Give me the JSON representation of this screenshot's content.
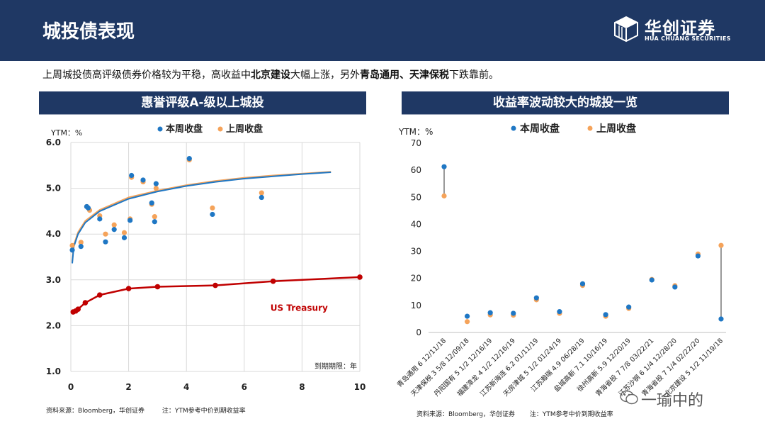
{
  "header": {
    "title": "城投债表现",
    "logo_main": "华创证券",
    "logo_sub": "HUA CHUANG SECURITIES"
  },
  "summary": {
    "p1": "上周城投债高评级债券价格较为平稳，高收益中",
    "b1": "北京建设",
    "p2": "大幅上涨，另外",
    "b2": "青岛通用、天津保税",
    "p3": "下跌靠前。"
  },
  "colors": {
    "blue": "#1f77c4",
    "orange": "#f5a35a",
    "red": "#c00000",
    "navy": "#1f3864"
  },
  "left_panel": {
    "title": "惠誉评级A-级以上城投",
    "source": "资料来源：Bloomberg，华创证券",
    "note": "注：YTM参考中价到期收益率"
  },
  "right_panel": {
    "title": "收益率波动较大的城投一览",
    "source": "资料来源：Bloomberg，华创证券",
    "note": "注：YTM参考中价到期收益率"
  },
  "watermark": "一瑜中的",
  "chart_data": [
    {
      "type": "scatter",
      "ylabel": "YTM：%",
      "xlabel": "到期期限：年",
      "xlim": [
        0,
        10
      ],
      "ylim": [
        1.0,
        6.0
      ],
      "xticks": [
        0,
        2,
        4,
        6,
        8,
        10
      ],
      "yticks": [
        "1.0",
        "2.0",
        "3.0",
        "4.0",
        "5.0",
        "6.0"
      ],
      "grid": true,
      "legend": [
        "本周收盘",
        "上周收盘"
      ],
      "series": [
        {
          "name": "本周收盘",
          "points": [
            [
              0.05,
              3.65
            ],
            [
              0.35,
              3.73
            ],
            [
              0.55,
              4.6
            ],
            [
              0.6,
              4.57
            ],
            [
              1.0,
              4.33
            ],
            [
              1.2,
              3.83
            ],
            [
              1.5,
              4.1
            ],
            [
              1.85,
              3.92
            ],
            [
              2.05,
              4.3
            ],
            [
              2.1,
              5.28
            ],
            [
              2.5,
              5.18
            ],
            [
              2.8,
              4.68
            ],
            [
              2.9,
              4.27
            ],
            [
              2.95,
              5.1
            ],
            [
              4.1,
              5.65
            ],
            [
              4.9,
              4.43
            ],
            [
              6.6,
              4.8
            ]
          ]
        },
        {
          "name": "上周收盘",
          "points": [
            [
              0.05,
              3.75
            ],
            [
              0.35,
              3.82
            ],
            [
              0.55,
              4.6
            ],
            [
              0.65,
              4.52
            ],
            [
              1.0,
              4.4
            ],
            [
              1.2,
              4.0
            ],
            [
              1.5,
              4.2
            ],
            [
              1.85,
              4.03
            ],
            [
              2.05,
              4.33
            ],
            [
              2.1,
              5.24
            ],
            [
              2.5,
              5.14
            ],
            [
              2.8,
              4.65
            ],
            [
              2.9,
              4.38
            ],
            [
              2.95,
              5.0
            ],
            [
              4.1,
              5.62
            ],
            [
              4.9,
              4.57
            ],
            [
              6.6,
              4.9
            ]
          ]
        },
        {
          "name": "本周拟合",
          "curve": {
            "x": [
              0.05,
              0.1,
              0.25,
              0.5,
              1,
              2,
              3,
              4,
              5,
              6,
              7,
              8,
              9
            ],
            "y": [
              3.36,
              3.72,
              4.0,
              4.25,
              4.5,
              4.77,
              4.93,
              5.05,
              5.14,
              5.21,
              5.26,
              5.31,
              5.35
            ]
          }
        },
        {
          "name": "上周拟合",
          "curve": {
            "x": [
              0.05,
              0.1,
              0.25,
              0.5,
              1,
              2,
              3,
              4,
              5,
              6,
              7,
              8,
              9
            ],
            "y": [
              3.4,
              3.76,
              4.04,
              4.29,
              4.53,
              4.8,
              4.95,
              5.07,
              5.16,
              5.23,
              5.28,
              5.32,
              5.36
            ]
          }
        },
        {
          "name": "US Treasury",
          "points": [
            [
              0.08,
              2.3
            ],
            [
              0.17,
              2.32
            ],
            [
              0.25,
              2.36
            ],
            [
              0.5,
              2.5
            ],
            [
              1,
              2.67
            ],
            [
              2,
              2.81
            ],
            [
              3,
              2.85
            ],
            [
              5,
              2.88
            ],
            [
              7,
              2.97
            ],
            [
              10,
              3.06
            ]
          ]
        }
      ],
      "annotation": "US Treasury"
    },
    {
      "type": "scatter",
      "ylabel": "YTM：%",
      "ylim": [
        0,
        70
      ],
      "yticks": [
        0,
        10,
        20,
        30,
        40,
        50,
        60,
        70
      ],
      "grid": false,
      "legend": [
        "本周收盘",
        "上周收盘"
      ],
      "categories": [
        "青岛通用 6 12/11/18",
        "天津保税 3 5/8 12/09/18",
        "丹阳国有 5 1/2 12/16/19",
        "福建漳龙 4 1/2 12/16/19",
        "江苏新海连 6.2 01/11/19",
        "天房津城 5 1/2 01/24/19",
        "江苏瀚瑞 4.9 06/28/19",
        "盐城高新 7.1 10/16/19",
        "徐州高新 5.9 12/20/19",
        "青海省投 7 7/8 03/22/21",
        "江苏沙钢 6 1/4 12/28/20",
        "青海省投 7 1/4 02/22/20",
        "北京建设 5 1/2 11/19/18"
      ],
      "series": [
        {
          "name": "本周收盘",
          "values": [
            61.3,
            6.0,
            7.3,
            7.1,
            12.8,
            7.7,
            18.0,
            6.6,
            9.4,
            19.4,
            16.8,
            28.3,
            5.0
          ]
        },
        {
          "name": "上周收盘",
          "values": [
            50.5,
            4.0,
            6.5,
            6.4,
            12.1,
            7.1,
            17.4,
            6.0,
            8.9,
            19.6,
            17.3,
            29.0,
            32.2
          ]
        }
      ],
      "highlight_lines": [
        "青岛通用 6 12/11/18",
        "北京建设 5 1/2 11/19/18"
      ]
    }
  ]
}
